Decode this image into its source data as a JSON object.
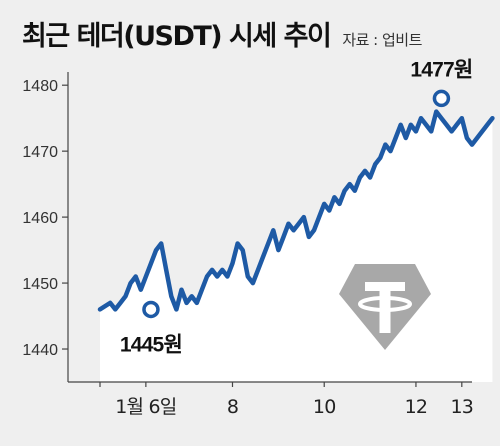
{
  "header": {
    "title": "최근 테더(USDT) 시세 추이",
    "source": "자료 : 업비트"
  },
  "colors": {
    "line": "#1e5aa5",
    "area": "#ffffff",
    "background": "#efefef",
    "logo": "#a8a8a8"
  },
  "icons": {
    "logo": "tether-logo-icon"
  },
  "chart_data": {
    "type": "line",
    "title": "최근 테더(USDT) 시세 추이",
    "source": "자료 : 업비트",
    "xlabel": "",
    "ylabel": "",
    "ylim": [
      1435,
      1482
    ],
    "xlim": [
      0,
      73
    ],
    "yticks": [
      1440,
      1450,
      1460,
      1470,
      1480
    ],
    "xticks": [
      {
        "pos": 0,
        "label": ""
      },
      {
        "pos": 9,
        "label": "1월 6일"
      },
      {
        "pos": 26,
        "label": "8"
      },
      {
        "pos": 44,
        "label": "10"
      },
      {
        "pos": 62,
        "label": "12"
      },
      {
        "pos": 71,
        "label": "13"
      }
    ],
    "area_fill": true,
    "grid": false,
    "annotations": [
      {
        "label": "1445원",
        "x": 10,
        "y": 1446,
        "position": "below"
      },
      {
        "label": "1477원",
        "x": 67,
        "y": 1478,
        "position": "above"
      }
    ],
    "series": [
      {
        "values": [
          1446,
          1446.5,
          1447,
          1446,
          1447,
          1448,
          1450,
          1451,
          1449,
          1451,
          1453,
          1455,
          1456,
          1452,
          1448,
          1446,
          1449,
          1447,
          1448,
          1447,
          1449,
          1451,
          1452,
          1451,
          1452,
          1451,
          1453,
          1456,
          1455,
          1451,
          1450,
          1452,
          1454,
          1456,
          1458,
          1455,
          1457,
          1459,
          1458,
          1459,
          1460,
          1457,
          1458,
          1460,
          1462,
          1461,
          1463,
          1462,
          1464,
          1465,
          1464,
          1466,
          1467,
          1466,
          1468,
          1469,
          1471,
          1470,
          1472,
          1474,
          1472,
          1474,
          1473,
          1475,
          1474,
          1473,
          1476,
          1475,
          1474,
          1473,
          1474,
          1475,
          1472,
          1471,
          1472,
          1473,
          1474,
          1475
        ]
      }
    ]
  }
}
